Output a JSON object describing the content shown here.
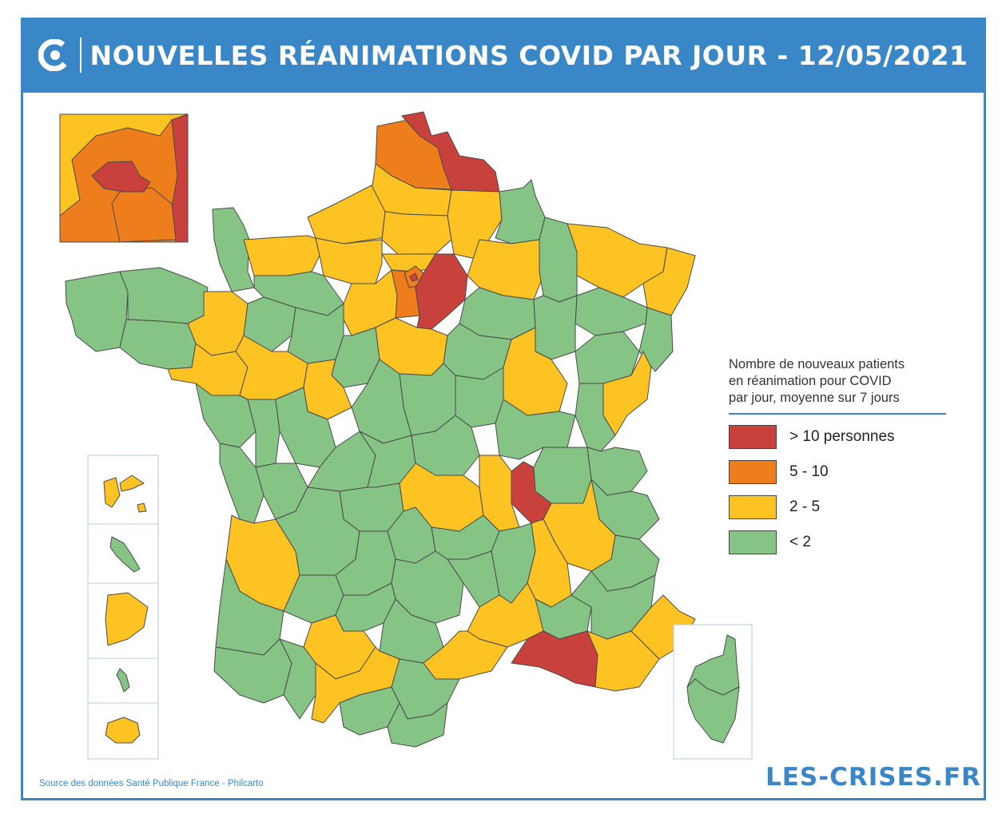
{
  "header": {
    "title": "NOUVELLES RÉANIMATIONS COVID PAR JOUR - 12/05/2021",
    "logo_icon": "les-crises-c-icon"
  },
  "legend": {
    "title_line1": "Nombre de nouveaux patients",
    "title_line2": "en réanimation pour COVID",
    "title_line3": "par jour, moyenne sur 7 jours",
    "items": [
      {
        "label": "> 10 personnes",
        "color": "#c8413c"
      },
      {
        "label": "5 - 10",
        "color": "#ee7d1c"
      },
      {
        "label": "2 - 5",
        "color": "#fdc323"
      },
      {
        "label": "< 2",
        "color": "#86c486"
      }
    ]
  },
  "footer": {
    "source": "Source des données Santé Publique France - Philcarto",
    "brand": "LES-CRISES.FR"
  },
  "colors": {
    "accent": "#3a87c8",
    "red": "#c8413c",
    "orange": "#ee7d1c",
    "yellow": "#fdc323",
    "green": "#86c486"
  }
}
